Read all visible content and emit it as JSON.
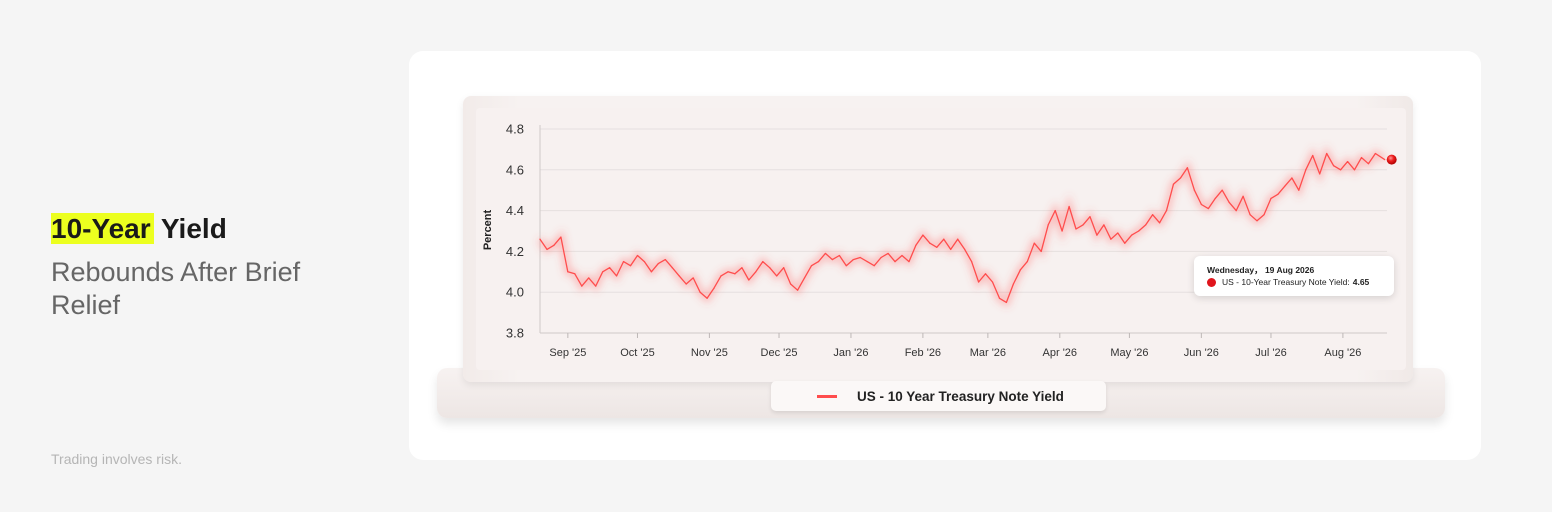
{
  "headline": {
    "highlight": "10-Year",
    "rest": "Yield",
    "subtitle": "Rebounds After Brief Relief"
  },
  "disclaimer": "Trading involves risk.",
  "legend": {
    "label": "US - 10 Year Treasury Note Yield"
  },
  "tooltip": {
    "date": "Wednesday， 19 Aug 2026",
    "series_label": "US - 10-Year Treasury Note Yield:",
    "value": "4.65"
  },
  "colors": {
    "accent_highlight": "#ecff1f",
    "line": "#ff4d4d",
    "marker": "#e0151d"
  },
  "chart_data": {
    "type": "line",
    "ylabel": "Percent",
    "xlabel": "",
    "ylim": [
      3.8,
      4.8
    ],
    "yticks": [
      "4.8",
      "4.6",
      "4.4",
      "4.2",
      "4.0",
      "3.8"
    ],
    "xlim": [
      "2025-08-20",
      "2026-08-20"
    ],
    "xticks": [
      {
        "label": "Sep '25",
        "date": "2025-09-01"
      },
      {
        "label": "Oct '25",
        "date": "2025-10-01"
      },
      {
        "label": "Nov '25",
        "date": "2025-11-01"
      },
      {
        "label": "Dec '25",
        "date": "2025-12-01"
      },
      {
        "label": "Jan '26",
        "date": "2026-01-01"
      },
      {
        "label": "Feb '26",
        "date": "2026-02-01"
      },
      {
        "label": "Mar '26",
        "date": "2026-03-01"
      },
      {
        "label": "Apr '26",
        "date": "2026-04-01"
      },
      {
        "label": "May '26",
        "date": "2026-05-01"
      },
      {
        "label": "Jun '26",
        "date": "2026-06-01"
      },
      {
        "label": "Jul '26",
        "date": "2026-07-01"
      },
      {
        "label": "Aug '26",
        "date": "2026-08-01"
      }
    ],
    "grid": true,
    "series": [
      {
        "name": "US - 10 Year Treasury Note Yield",
        "points": [
          [
            "2025-08-20",
            4.26
          ],
          [
            "2025-08-23",
            4.21
          ],
          [
            "2025-08-26",
            4.23
          ],
          [
            "2025-08-29",
            4.27
          ],
          [
            "2025-09-01",
            4.1
          ],
          [
            "2025-09-04",
            4.09
          ],
          [
            "2025-09-07",
            4.03
          ],
          [
            "2025-09-10",
            4.07
          ],
          [
            "2025-09-13",
            4.03
          ],
          [
            "2025-09-16",
            4.1
          ],
          [
            "2025-09-19",
            4.12
          ],
          [
            "2025-09-22",
            4.08
          ],
          [
            "2025-09-25",
            4.15
          ],
          [
            "2025-09-28",
            4.13
          ],
          [
            "2025-10-01",
            4.18
          ],
          [
            "2025-10-04",
            4.15
          ],
          [
            "2025-10-07",
            4.1
          ],
          [
            "2025-10-10",
            4.14
          ],
          [
            "2025-10-13",
            4.16
          ],
          [
            "2025-10-16",
            4.12
          ],
          [
            "2025-10-19",
            4.08
          ],
          [
            "2025-10-22",
            4.04
          ],
          [
            "2025-10-25",
            4.07
          ],
          [
            "2025-10-28",
            4.0
          ],
          [
            "2025-10-31",
            3.97
          ],
          [
            "2025-11-03",
            4.02
          ],
          [
            "2025-11-06",
            4.08
          ],
          [
            "2025-11-09",
            4.1
          ],
          [
            "2025-11-12",
            4.09
          ],
          [
            "2025-11-15",
            4.12
          ],
          [
            "2025-11-18",
            4.06
          ],
          [
            "2025-11-21",
            4.1
          ],
          [
            "2025-11-24",
            4.15
          ],
          [
            "2025-11-27",
            4.12
          ],
          [
            "2025-11-30",
            4.08
          ],
          [
            "2025-12-03",
            4.12
          ],
          [
            "2025-12-06",
            4.04
          ],
          [
            "2025-12-09",
            4.01
          ],
          [
            "2025-12-12",
            4.07
          ],
          [
            "2025-12-15",
            4.13
          ],
          [
            "2025-12-18",
            4.15
          ],
          [
            "2025-12-21",
            4.19
          ],
          [
            "2025-12-24",
            4.16
          ],
          [
            "2025-12-27",
            4.18
          ],
          [
            "2025-12-30",
            4.13
          ],
          [
            "2026-01-02",
            4.16
          ],
          [
            "2026-01-05",
            4.17
          ],
          [
            "2026-01-08",
            4.15
          ],
          [
            "2026-01-11",
            4.13
          ],
          [
            "2026-01-14",
            4.17
          ],
          [
            "2026-01-17",
            4.19
          ],
          [
            "2026-01-20",
            4.15
          ],
          [
            "2026-01-23",
            4.18
          ],
          [
            "2026-01-26",
            4.15
          ],
          [
            "2026-01-29",
            4.23
          ],
          [
            "2026-02-01",
            4.28
          ],
          [
            "2026-02-04",
            4.24
          ],
          [
            "2026-02-07",
            4.22
          ],
          [
            "2026-02-10",
            4.26
          ],
          [
            "2026-02-13",
            4.21
          ],
          [
            "2026-02-16",
            4.26
          ],
          [
            "2026-02-19",
            4.21
          ],
          [
            "2026-02-22",
            4.15
          ],
          [
            "2026-02-25",
            4.05
          ],
          [
            "2026-02-28",
            4.09
          ],
          [
            "2026-03-03",
            4.05
          ],
          [
            "2026-03-06",
            3.97
          ],
          [
            "2026-03-09",
            3.95
          ],
          [
            "2026-03-12",
            4.04
          ],
          [
            "2026-03-15",
            4.11
          ],
          [
            "2026-03-18",
            4.15
          ],
          [
            "2026-03-21",
            4.24
          ],
          [
            "2026-03-24",
            4.2
          ],
          [
            "2026-03-27",
            4.33
          ],
          [
            "2026-03-30",
            4.4
          ],
          [
            "2026-04-02",
            4.3
          ],
          [
            "2026-04-05",
            4.42
          ],
          [
            "2026-04-08",
            4.31
          ],
          [
            "2026-04-11",
            4.33
          ],
          [
            "2026-04-14",
            4.37
          ],
          [
            "2026-04-17",
            4.28
          ],
          [
            "2026-04-20",
            4.33
          ],
          [
            "2026-04-23",
            4.26
          ],
          [
            "2026-04-26",
            4.29
          ],
          [
            "2026-04-29",
            4.24
          ],
          [
            "2026-05-02",
            4.28
          ],
          [
            "2026-05-05",
            4.3
          ],
          [
            "2026-05-08",
            4.33
          ],
          [
            "2026-05-11",
            4.38
          ],
          [
            "2026-05-14",
            4.34
          ],
          [
            "2026-05-17",
            4.4
          ],
          [
            "2026-05-20",
            4.53
          ],
          [
            "2026-05-23",
            4.56
          ],
          [
            "2026-05-26",
            4.61
          ],
          [
            "2026-05-29",
            4.5
          ],
          [
            "2026-06-01",
            4.43
          ],
          [
            "2026-06-04",
            4.41
          ],
          [
            "2026-06-07",
            4.46
          ],
          [
            "2026-06-10",
            4.5
          ],
          [
            "2026-06-13",
            4.44
          ],
          [
            "2026-06-16",
            4.4
          ],
          [
            "2026-06-19",
            4.47
          ],
          [
            "2026-06-22",
            4.38
          ],
          [
            "2026-06-25",
            4.35
          ],
          [
            "2026-06-28",
            4.38
          ],
          [
            "2026-07-01",
            4.46
          ],
          [
            "2026-07-04",
            4.48
          ],
          [
            "2026-07-07",
            4.52
          ],
          [
            "2026-07-10",
            4.56
          ],
          [
            "2026-07-13",
            4.5
          ],
          [
            "2026-07-16",
            4.6
          ],
          [
            "2026-07-19",
            4.67
          ],
          [
            "2026-07-22",
            4.58
          ],
          [
            "2026-07-25",
            4.68
          ],
          [
            "2026-07-28",
            4.62
          ],
          [
            "2026-07-31",
            4.6
          ],
          [
            "2026-08-03",
            4.64
          ],
          [
            "2026-08-06",
            4.6
          ],
          [
            "2026-08-09",
            4.66
          ],
          [
            "2026-08-12",
            4.63
          ],
          [
            "2026-08-15",
            4.68
          ],
          [
            "2026-08-19",
            4.65
          ]
        ]
      }
    ],
    "highlight_point": {
      "x": "2026-08-19",
      "y": 4.65
    }
  }
}
